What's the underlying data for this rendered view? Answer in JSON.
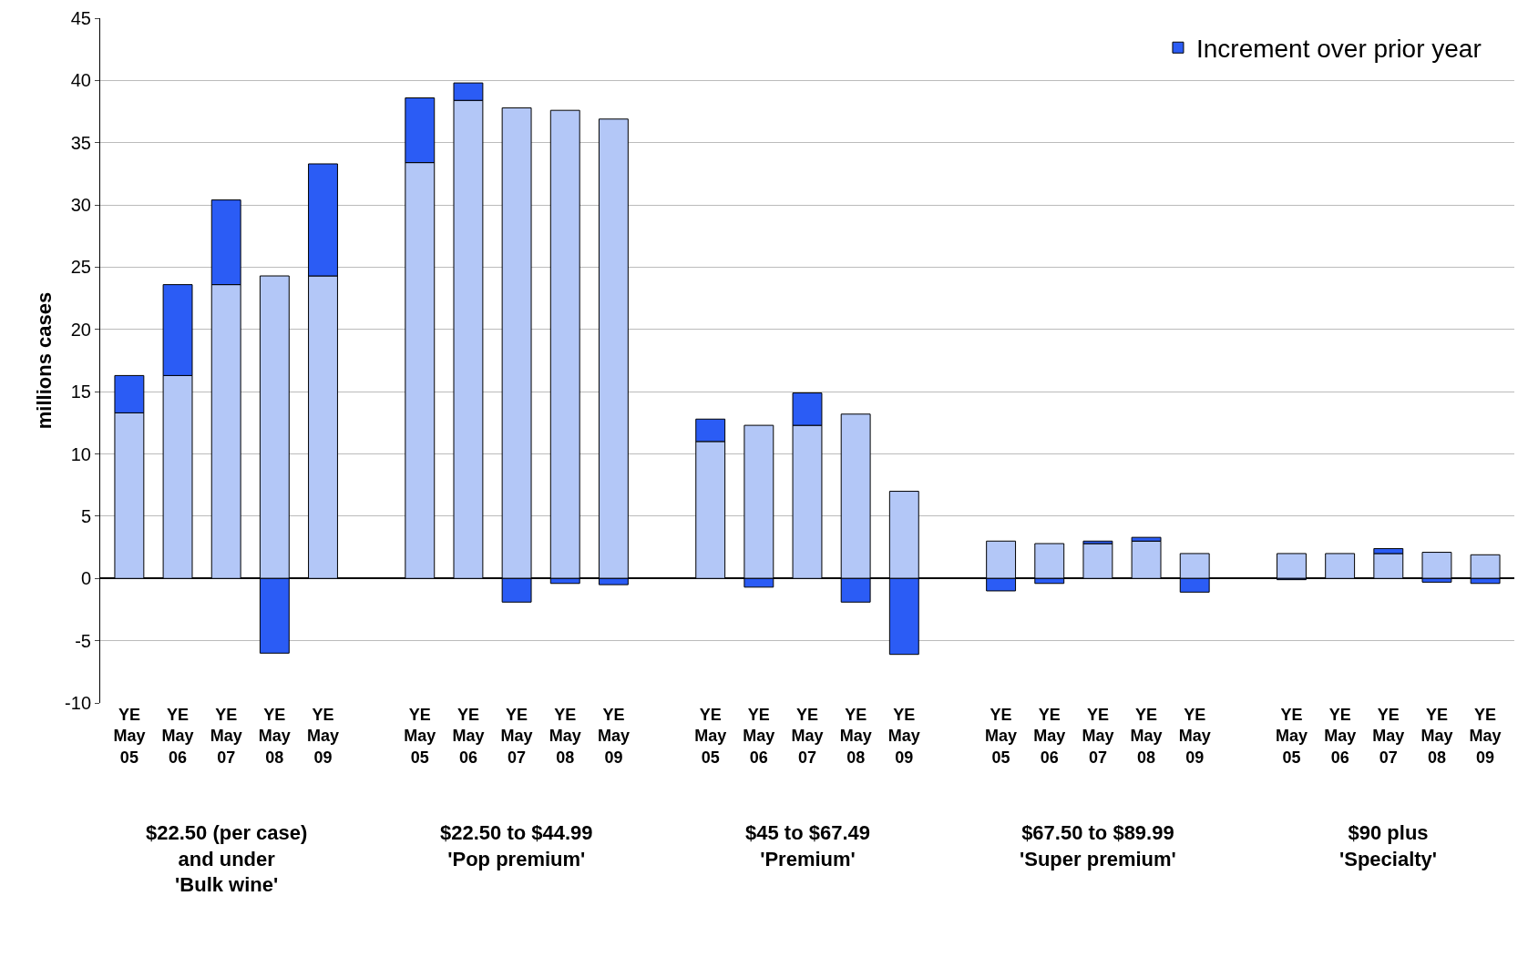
{
  "chart_data": {
    "type": "bar",
    "stacked": true,
    "ylabel": "millions cases",
    "categories": [
      "YE May 05",
      "YE May 06",
      "YE May 07",
      "YE May 08",
      "YE May 09",
      null,
      "YE May 05",
      "YE May 06",
      "YE May 07",
      "YE May 08",
      "YE May 09",
      null,
      "YE May 05",
      "YE May 06",
      "YE May 07",
      "YE May 08",
      "YE May 09",
      null,
      "YE May 05",
      "YE May 06",
      "YE May 07",
      "YE May 08",
      "YE May 09",
      null,
      "YE May 05",
      "YE May 06",
      "YE May 07",
      "YE May 08",
      "YE May 09"
    ],
    "series": [
      {
        "color": "#b3c7f7",
        "values": [
          13.3,
          16.3,
          23.6,
          24.3,
          24.3,
          null,
          33.4,
          38.4,
          37.8,
          37.6,
          36.9,
          null,
          11.0,
          12.3,
          12.3,
          13.2,
          7.0,
          null,
          3.0,
          2.8,
          2.8,
          3.0,
          2.0,
          null,
          2.0,
          2.0,
          2.0,
          2.1,
          1.9
        ]
      },
      {
        "name": "Increment over prior year",
        "color": "#2b5cf5",
        "values": [
          3.0,
          7.3,
          6.8,
          -6.0,
          9.0,
          null,
          5.2,
          1.4,
          -1.9,
          -0.4,
          -0.5,
          null,
          1.8,
          -0.7,
          2.6,
          -1.9,
          -6.1,
          null,
          -1.0,
          -0.4,
          0.2,
          0.3,
          -1.1,
          null,
          -0.1,
          null,
          0.4,
          -0.3,
          -0.4
        ]
      }
    ],
    "ylim": [
      -10,
      45
    ],
    "yticks": [
      -10,
      -5,
      0,
      5,
      10,
      15,
      20,
      25,
      30,
      35,
      40,
      45
    ],
    "grid": "y",
    "legend": "top right",
    "annotations": [
      "$22.50 (per case)\nand under\n'Bulk wine'",
      "$22.50 to $44.99\n'Pop premium'",
      "$45 to $67.49\n'Premium'",
      "$67.50 to $89.99\n'Super premium'",
      "$90 plus\n'Specialty'"
    ]
  }
}
